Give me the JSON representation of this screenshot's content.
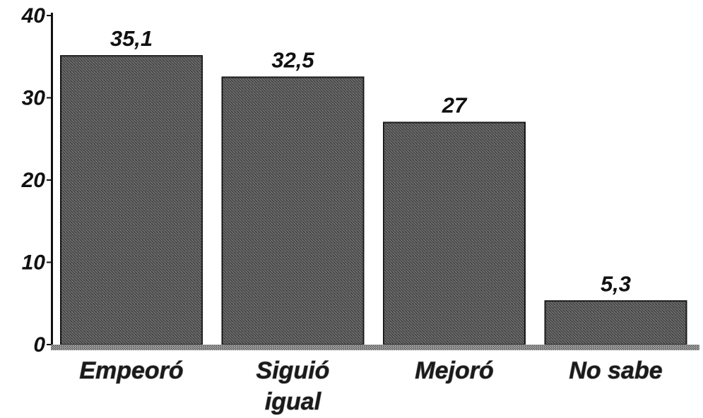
{
  "chart_data": {
    "type": "bar",
    "categories": [
      [
        "Empeoró"
      ],
      [
        "Siguió",
        "igual"
      ],
      [
        "Mejoró"
      ],
      [
        "No sabe"
      ]
    ],
    "values": [
      35.1,
      32.5,
      27,
      5.3
    ],
    "data_labels": [
      "35,1",
      "32,5",
      "27",
      "5,3"
    ],
    "ylim": [
      0,
      40
    ],
    "yticks": [
      0,
      10,
      20,
      30,
      40
    ],
    "ytick_labels": [
      "0",
      "10",
      "20",
      "30",
      "40"
    ],
    "title": "",
    "xlabel": "",
    "ylabel": "",
    "grid": false,
    "legend": "none",
    "bar_fill": "#4a4a4a",
    "axis_color": "#111111"
  }
}
